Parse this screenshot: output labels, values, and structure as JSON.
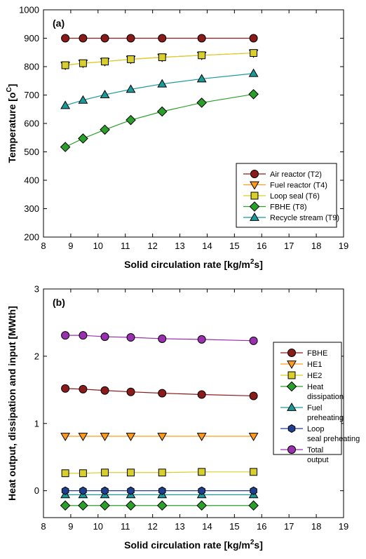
{
  "chart_data": [
    {
      "type": "line",
      "panel_label": "(a)",
      "xlabel": "Solid circulation rate [kg/m2s]",
      "ylabel": "Temperature [oC]",
      "xlim": [
        8,
        19
      ],
      "ylim": [
        200,
        1000
      ],
      "xticks": [
        8,
        9,
        10,
        11,
        12,
        13,
        14,
        15,
        16,
        17,
        18,
        19
      ],
      "yticks": [
        200,
        300,
        400,
        500,
        600,
        700,
        800,
        900,
        1000
      ],
      "legend_position": "bottom-right",
      "x": [
        8.8,
        9.45,
        10.25,
        11.2,
        12.35,
        13.8,
        15.7
      ],
      "series": [
        {
          "name": "Air reactor (T2)",
          "marker": "circle",
          "color": "#8b1a1a",
          "values": [
            900,
            900,
            900,
            900,
            900,
            900,
            900
          ]
        },
        {
          "name": "Fuel reactor (T4)",
          "marker": "triangle-down",
          "color": "#ff9a1a",
          "values": [
            805,
            812,
            818,
            826,
            833,
            840,
            848
          ]
        },
        {
          "name": "Loop seal (T6)",
          "marker": "square",
          "color": "#d9cf2a",
          "values": [
            805,
            812,
            818,
            826,
            833,
            840,
            848
          ]
        },
        {
          "name": "FBHE (T8)",
          "marker": "diamond",
          "color": "#2aa02a",
          "values": [
            517,
            547,
            578,
            612,
            642,
            673,
            703
          ]
        },
        {
          "name": "Recycle stream (T9)",
          "marker": "triangle-up",
          "color": "#1a9a9a",
          "values": [
            663,
            682,
            701,
            720,
            739,
            757,
            776
          ]
        }
      ]
    },
    {
      "type": "line",
      "panel_label": "(b)",
      "xlabel": "Solid circulation rate [kg/m2s]",
      "ylabel": "Heat output, dissipation and input [MWth]",
      "xlim": [
        8,
        19
      ],
      "ylim": [
        -0.4,
        3
      ],
      "xticks": [
        8,
        9,
        10,
        11,
        12,
        13,
        14,
        15,
        16,
        17,
        18,
        19
      ],
      "yticks": [
        0,
        1,
        2,
        3
      ],
      "legend_position": "right",
      "x": [
        8.8,
        9.45,
        10.25,
        11.2,
        12.35,
        13.8,
        15.7
      ],
      "series": [
        {
          "name": "FBHE",
          "marker": "circle",
          "color": "#8b1a1a",
          "values": [
            1.52,
            1.51,
            1.49,
            1.47,
            1.45,
            1.43,
            1.41
          ]
        },
        {
          "name": "HE1",
          "marker": "triangle-down",
          "color": "#ff9a1a",
          "values": [
            0.81,
            0.81,
            0.81,
            0.81,
            0.81,
            0.81,
            0.81
          ]
        },
        {
          "name": "HE2",
          "marker": "square",
          "color": "#d9cf2a",
          "values": [
            0.26,
            0.26,
            0.27,
            0.27,
            0.27,
            0.28,
            0.28
          ]
        },
        {
          "name": "Heat dissipation",
          "marker": "diamond",
          "color": "#2aa02a",
          "values": [
            -0.22,
            -0.22,
            -0.22,
            -0.22,
            -0.22,
            -0.22,
            -0.22
          ]
        },
        {
          "name": "Fuel preheating",
          "marker": "triangle-up",
          "color": "#1a9a9a",
          "values": [
            -0.06,
            -0.06,
            -0.06,
            -0.06,
            -0.06,
            -0.06,
            -0.06
          ]
        },
        {
          "name": "Loop seal preheating",
          "marker": "hexagon",
          "color": "#1f3f8f",
          "values": [
            0.0,
            0.0,
            0.0,
            0.0,
            0.0,
            0.0,
            0.0
          ]
        },
        {
          "name": "Total output",
          "marker": "circle",
          "color": "#9a2fb0",
          "values": [
            2.31,
            2.31,
            2.29,
            2.28,
            2.26,
            2.25,
            2.23
          ]
        }
      ]
    }
  ]
}
